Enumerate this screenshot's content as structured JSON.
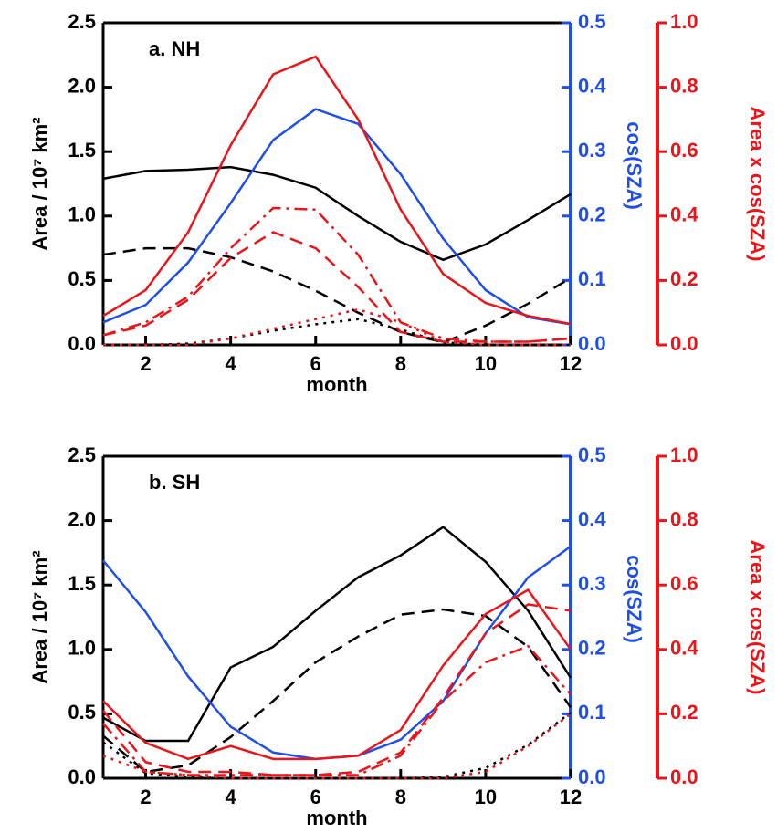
{
  "chart_data": [
    {
      "type": "line",
      "annotation": "a. NH",
      "x_label": "month",
      "y_label": "Area  / 10⁷ km²",
      "y2_label": "cos(SZA)",
      "y3_label": "Area x cos(SZA)",
      "y2_color": "#1f4fe8",
      "y3_color": "#e8161b",
      "x": [
        1,
        2,
        3,
        4,
        5,
        6,
        7,
        8,
        9,
        10,
        11,
        12
      ],
      "xlim": [
        1,
        12
      ],
      "xticks": [
        2,
        4,
        6,
        8,
        10,
        12
      ],
      "ylim": [
        0,
        2.5
      ],
      "yticks": [
        {
          "value": 0,
          "label": "0.0"
        },
        {
          "value": 0.5,
          "label": "0.5"
        },
        {
          "value": 1,
          "label": "1.0"
        },
        {
          "value": 1.5,
          "label": "1.5"
        },
        {
          "value": 2,
          "label": "2.0"
        },
        {
          "value": 2.5,
          "label": "2.5"
        }
      ],
      "y2lim": [
        0,
        0.5
      ],
      "y2ticks": [
        {
          "value": 0,
          "label": "0.0"
        },
        0.1,
        0.2,
        0.3,
        0.4,
        0.5
      ],
      "y3lim": [
        0,
        1
      ],
      "y3ticks": [
        {
          "value": 0,
          "label": "0.0"
        },
        0.2,
        0.4,
        0.6,
        0.8,
        {
          "value": 1,
          "label": "1.0"
        }
      ],
      "series": [
        {
          "color": "#000000",
          "style": "solid",
          "values": [
            1.29,
            1.35,
            1.36,
            1.38,
            1.32,
            1.22,
            1.0,
            0.8,
            0.66,
            0.78,
            0.97,
            1.17
          ]
        },
        {
          "color": "#000000",
          "style": "dashed",
          "values": [
            0.7,
            0.75,
            0.75,
            0.68,
            0.57,
            0.42,
            0.25,
            0.1,
            0.02,
            0.15,
            0.32,
            0.52
          ]
        },
        {
          "color": "#000000",
          "style": "dotted",
          "values": [
            0.0,
            0.0,
            0.01,
            0.05,
            0.11,
            0.16,
            0.2,
            0.12,
            0.02,
            0.0,
            0.0,
            0.0
          ]
        },
        {
          "color": "#1f4fe8",
          "style": "solid",
          "axis": "y2",
          "values": [
            0.035,
            0.062,
            0.128,
            0.22,
            0.318,
            0.366,
            0.343,
            0.265,
            0.165,
            0.085,
            0.043,
            0.032
          ]
        },
        {
          "color": "#e8161b",
          "style": "solid",
          "axis": "y3",
          "values": [
            0.09,
            0.17,
            0.35,
            0.62,
            0.84,
            0.895,
            0.7,
            0.42,
            0.22,
            0.13,
            0.09,
            0.065
          ]
        },
        {
          "color": "#e8161b",
          "style": "dashed",
          "axis": "y3",
          "values": [
            0.03,
            0.06,
            0.14,
            0.27,
            0.35,
            0.3,
            0.18,
            0.04,
            0.01,
            0.01,
            0.01,
            0.02
          ]
        },
        {
          "color": "#e8161b",
          "style": "dashdot",
          "axis": "y3",
          "values": [
            0.03,
            0.07,
            0.15,
            0.3,
            0.425,
            0.42,
            0.28,
            0.07,
            0.02,
            0.01,
            0.01,
            0.02
          ]
        },
        {
          "color": "#e8161b",
          "style": "dotted",
          "axis": "y3",
          "values": [
            0.0,
            0.0,
            0.0,
            0.02,
            0.05,
            0.08,
            0.11,
            0.07,
            0.01,
            0.0,
            0.0,
            0.0
          ]
        }
      ]
    },
    {
      "type": "line",
      "annotation": "b. SH",
      "x_label": "month",
      "y_label": "Area  / 10⁷ km²",
      "y2_label": "cos(SZA)",
      "y3_label": "Area x cos(SZA)",
      "y2_color": "#1f4fe8",
      "y3_color": "#e8161b",
      "x": [
        1,
        2,
        3,
        4,
        5,
        6,
        7,
        8,
        9,
        10,
        11,
        12
      ],
      "xlim": [
        1,
        12
      ],
      "xticks": [
        2,
        4,
        6,
        8,
        10,
        12
      ],
      "ylim": [
        0,
        2.5
      ],
      "yticks": [
        {
          "value": 0,
          "label": "0.0"
        },
        {
          "value": 0.5,
          "label": "0.5"
        },
        {
          "value": 1,
          "label": "1.0"
        },
        {
          "value": 1.5,
          "label": "1.5"
        },
        {
          "value": 2,
          "label": "2.0"
        },
        {
          "value": 2.5,
          "label": "2.5"
        }
      ],
      "y2lim": [
        0,
        0.5
      ],
      "y2ticks": [
        {
          "value": 0,
          "label": "0.0"
        },
        0.1,
        0.2,
        0.3,
        0.4,
        0.5
      ],
      "y3lim": [
        0,
        1
      ],
      "y3ticks": [
        {
          "value": 0,
          "label": "0.0"
        },
        0.2,
        0.4,
        0.6,
        0.8,
        {
          "value": 1,
          "label": "1.0"
        }
      ],
      "series": [
        {
          "color": "#000000",
          "style": "solid",
          "values": [
            0.47,
            0.29,
            0.29,
            0.86,
            1.02,
            1.3,
            1.56,
            1.73,
            1.95,
            1.68,
            1.3,
            0.78
          ]
        },
        {
          "color": "#000000",
          "style": "dashed",
          "values": [
            0.33,
            0.05,
            0.1,
            0.32,
            0.6,
            0.9,
            1.1,
            1.27,
            1.31,
            1.26,
            1.02,
            0.55
          ]
        },
        {
          "color": "#000000",
          "style": "dotted",
          "values": [
            0.28,
            0.04,
            0.01,
            0.0,
            0.0,
            0.0,
            0.0,
            0.0,
            0.01,
            0.08,
            0.26,
            0.51
          ]
        },
        {
          "color": "#1f4fe8",
          "style": "solid",
          "axis": "y2",
          "values": [
            0.338,
            0.258,
            0.158,
            0.08,
            0.04,
            0.03,
            0.035,
            0.06,
            0.12,
            0.225,
            0.312,
            0.36
          ]
        },
        {
          "color": "#e8161b",
          "style": "solid",
          "axis": "y3",
          "values": [
            0.24,
            0.11,
            0.06,
            0.1,
            0.06,
            0.06,
            0.07,
            0.15,
            0.35,
            0.51,
            0.585,
            0.4
          ]
        },
        {
          "color": "#e8161b",
          "style": "dashed",
          "axis": "y3",
          "values": [
            0.21,
            0.05,
            0.02,
            0.02,
            0.01,
            0.01,
            0.02,
            0.08,
            0.25,
            0.45,
            0.54,
            0.52
          ]
        },
        {
          "color": "#e8161b",
          "style": "dashdot",
          "axis": "y3",
          "values": [
            0.17,
            0.02,
            0.01,
            0.01,
            0.01,
            0.01,
            0.01,
            0.07,
            0.24,
            0.36,
            0.41,
            0.26
          ]
        },
        {
          "color": "#e8161b",
          "style": "dotted",
          "axis": "y3",
          "values": [
            0.07,
            0.02,
            0.01,
            0.0,
            0.0,
            0.0,
            0.0,
            0.0,
            0.0,
            0.02,
            0.1,
            0.2
          ]
        }
      ]
    }
  ]
}
